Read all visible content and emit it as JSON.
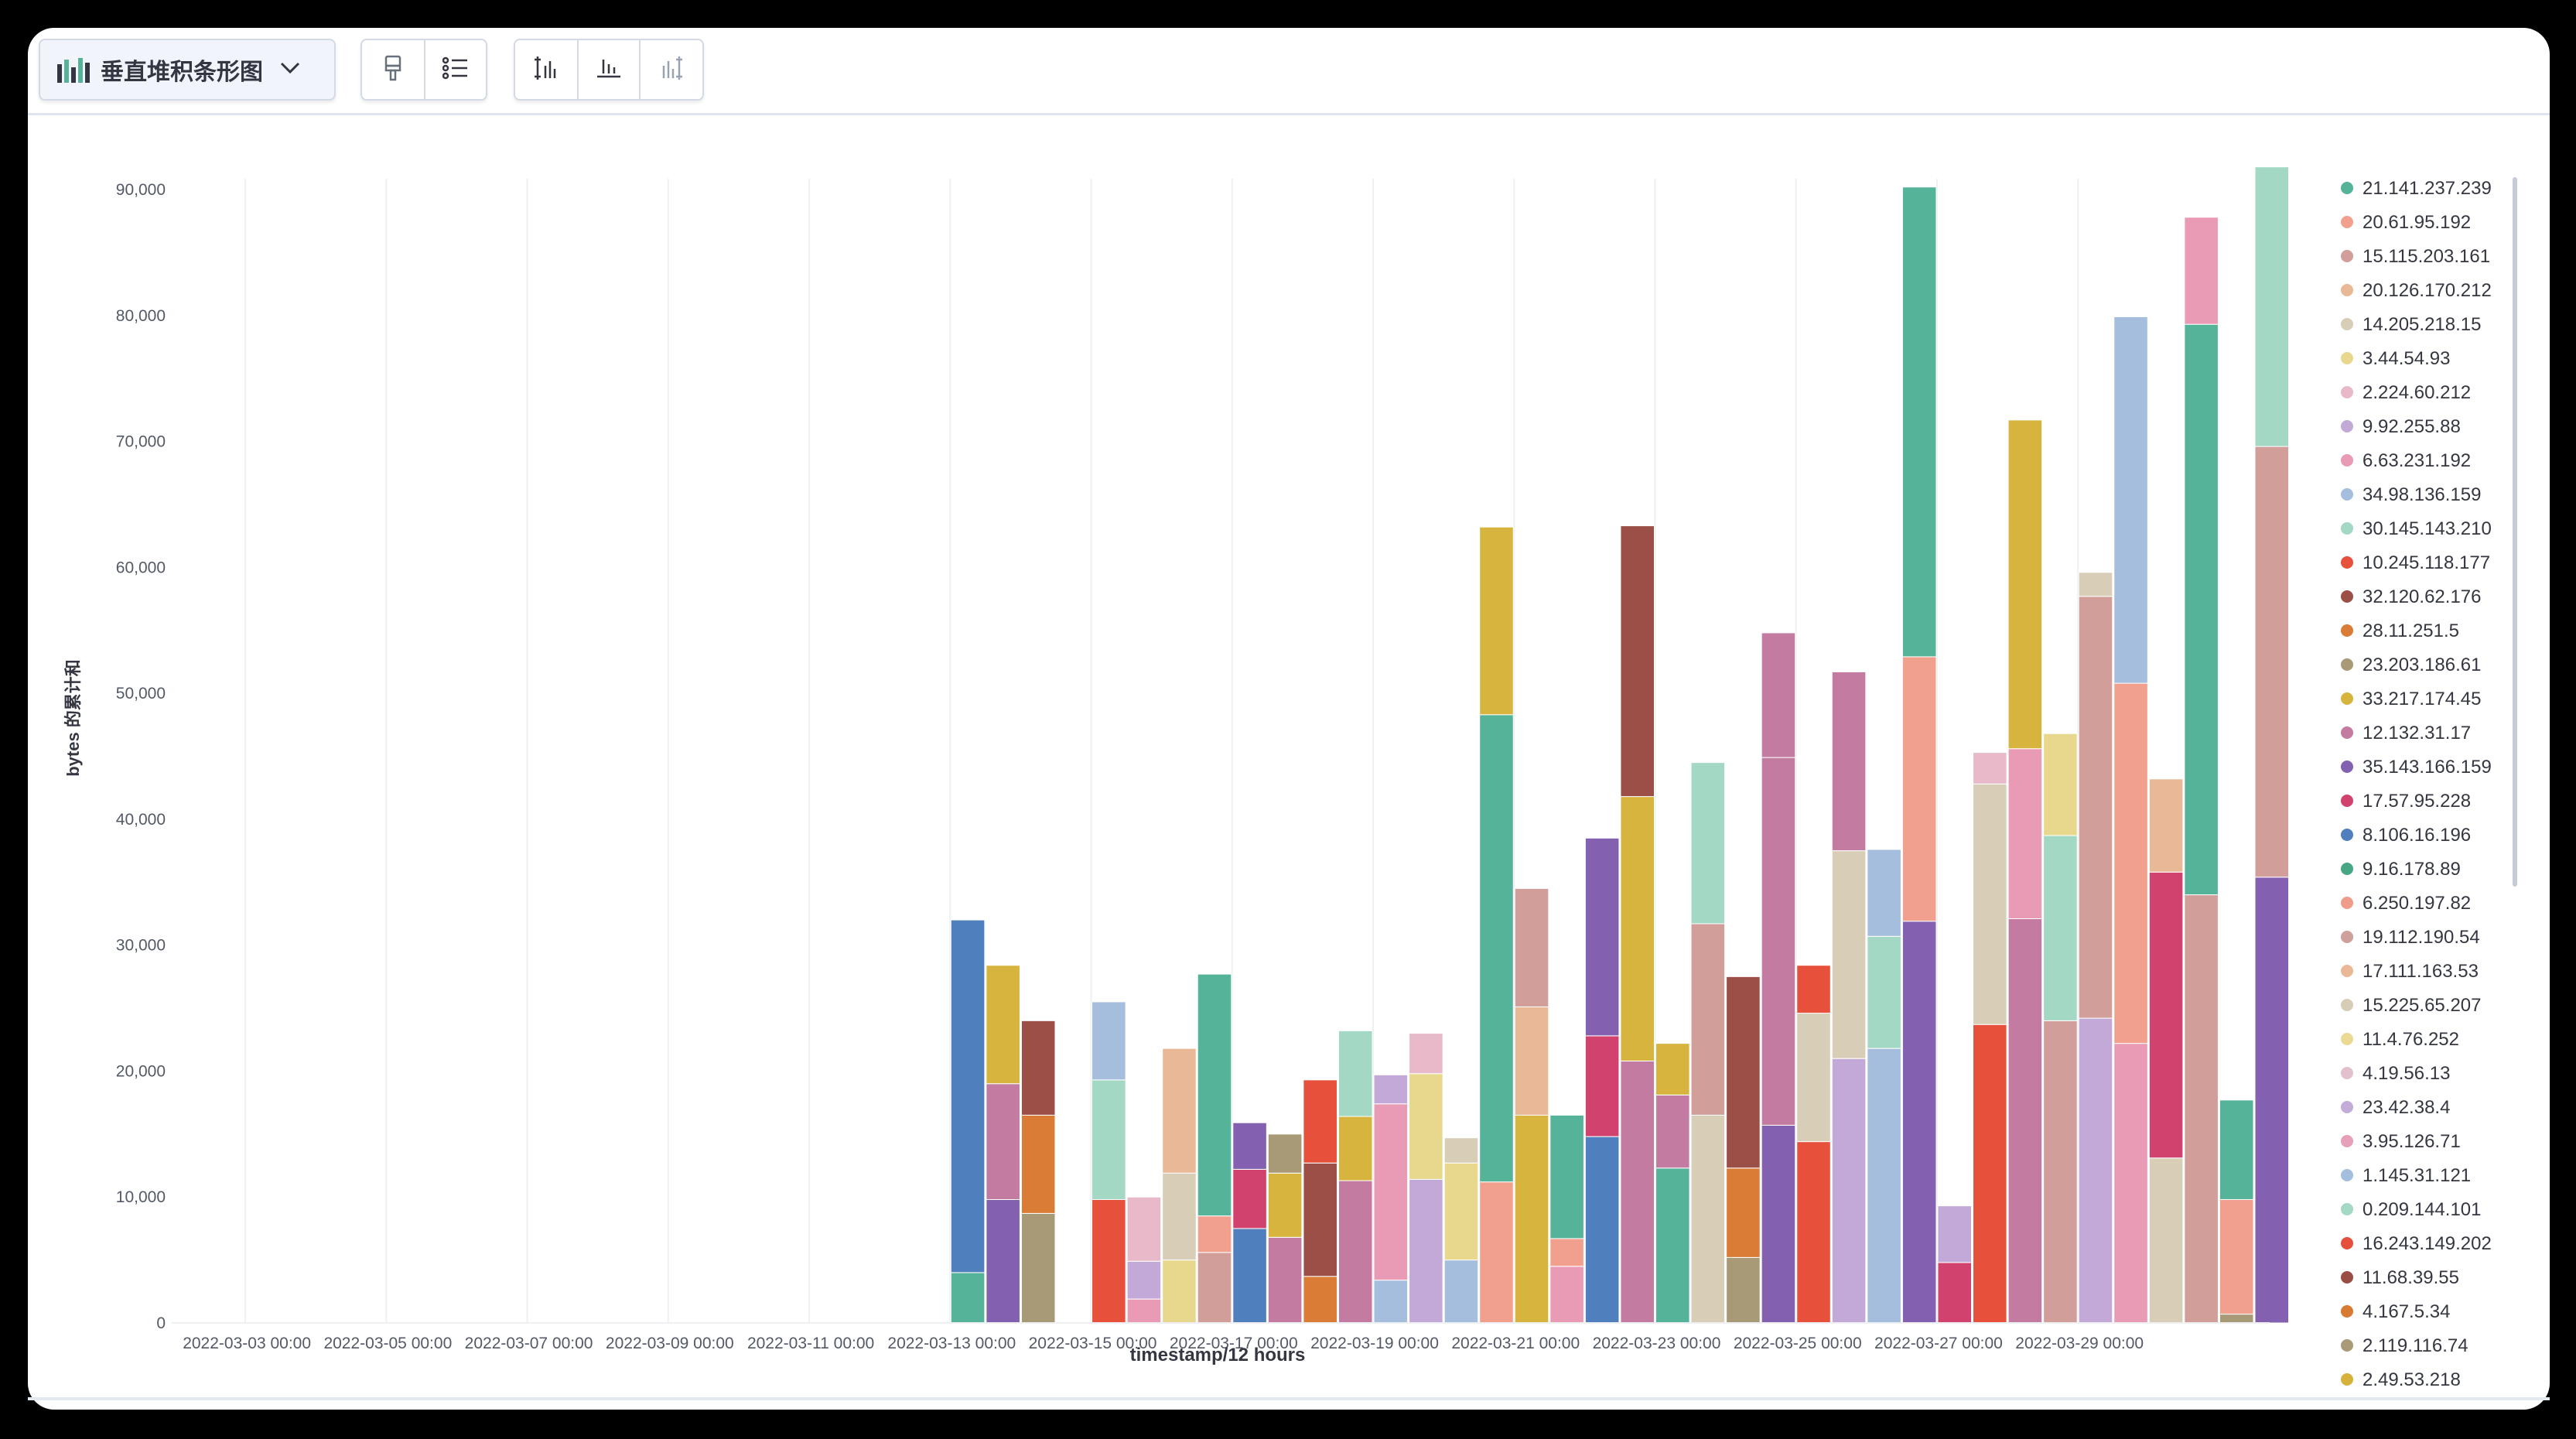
{
  "toolbar": {
    "chart_type_label": "垂直堆积条形图",
    "chart_type_icon": "bar-chart-icon",
    "dropdown_icon": "chevron-down-icon",
    "group1_icons": [
      "paintbrush-icon",
      "legend-list-icon"
    ],
    "group2_icons": [
      "axis-left-icon",
      "axis-bottom-icon",
      "axis-right-icon"
    ]
  },
  "chart_data": {
    "type": "bar",
    "stacked": true,
    "xlabel": "timestamp/12 hours",
    "ylabel": "bytes 的累计和",
    "ylim": [
      0,
      90000
    ],
    "yticks": [
      0,
      10000,
      20000,
      30000,
      40000,
      50000,
      60000,
      70000,
      80000,
      90000
    ],
    "ytick_labels": [
      "0",
      "10,000",
      "20,000",
      "30,000",
      "40,000",
      "50,000",
      "60,000",
      "70,000",
      "80,000",
      "90,000"
    ],
    "xlim": [
      "2022-03-02 00:00",
      "2022-03-31 12:00"
    ],
    "xtick_labels": [
      "2022-03-03 00:00",
      "2022-03-05 00:00",
      "2022-03-07 00:00",
      "2022-03-09 00:00",
      "2022-03-11 00:00",
      "2022-03-13 00:00",
      "2022-03-15 00:00",
      "2022-03-17 00:00",
      "2022-03-19 00:00",
      "2022-03-21 00:00",
      "2022-03-23 00:00",
      "2022-03-25 00:00",
      "2022-03-27 00:00",
      "2022-03-29 00:00"
    ],
    "grid": true,
    "legend_position": "right",
    "legend": [
      {
        "label": "21.141.237.239",
        "color": "#54b399"
      },
      {
        "label": "20.61.95.192",
        "color": "#f1a08e"
      },
      {
        "label": "15.115.203.161",
        "color": "#d19e9a"
      },
      {
        "label": "20.126.170.212",
        "color": "#e9b896"
      },
      {
        "label": "14.205.218.15",
        "color": "#d8cdb6"
      },
      {
        "label": "3.44.54.93",
        "color": "#e8d88e"
      },
      {
        "label": "2.224.60.212",
        "color": "#e8bac9"
      },
      {
        "label": "9.92.255.88",
        "color": "#c2a9d8"
      },
      {
        "label": "6.63.231.192",
        "color": "#e99bb6"
      },
      {
        "label": "34.98.136.159",
        "color": "#a5bedd"
      },
      {
        "label": "30.145.143.210",
        "color": "#a2d8c4"
      },
      {
        "label": "10.245.118.177",
        "color": "#e7503b"
      },
      {
        "label": "32.120.62.176",
        "color": "#9b4f47"
      },
      {
        "label": "28.11.251.5",
        "color": "#da7c35"
      },
      {
        "label": "23.203.186.61",
        "color": "#a89a76"
      },
      {
        "label": "33.217.174.45",
        "color": "#d7b43e"
      },
      {
        "label": "12.132.31.17",
        "color": "#c37ba1"
      },
      {
        "label": "35.143.166.159",
        "color": "#8460b0"
      },
      {
        "label": "17.57.95.228",
        "color": "#d1426e"
      },
      {
        "label": "8.106.16.196",
        "color": "#4f7fbc"
      },
      {
        "label": "9.16.178.89",
        "color": "#47a683"
      },
      {
        "label": "6.250.197.82",
        "color": "#f09c8b"
      },
      {
        "label": "19.112.190.54",
        "color": "#cf9f99"
      },
      {
        "label": "17.111.163.53",
        "color": "#eab896"
      },
      {
        "label": "15.225.65.207",
        "color": "#d7ccb5"
      },
      {
        "label": "11.4.76.252",
        "color": "#ebda92"
      },
      {
        "label": "4.19.56.13",
        "color": "#e3c0cd"
      },
      {
        "label": "23.42.38.4",
        "color": "#c3acd9"
      },
      {
        "label": "3.95.126.71",
        "color": "#e7a0b9"
      },
      {
        "label": "1.145.31.121",
        "color": "#a4bfdd"
      },
      {
        "label": "0.209.144.101",
        "color": "#a4d9c5"
      },
      {
        "label": "16.243.149.202",
        "color": "#e4503d"
      },
      {
        "label": "11.68.39.55",
        "color": "#9a4d45"
      },
      {
        "label": "4.167.5.34",
        "color": "#d97a33"
      },
      {
        "label": "2.119.116.74",
        "color": "#a99b78"
      },
      {
        "label": "2.49.53.218",
        "color": "#d6b23d"
      }
    ],
    "bars": [
      {
        "x": "2022-03-13 00:00",
        "segments": [
          {
            "color": "#54b399",
            "value": 4000
          },
          {
            "color": "#4f7fbc",
            "value": 28000
          }
        ]
      },
      {
        "x": "2022-03-13 12:00",
        "segments": [
          {
            "color": "#8460b0",
            "value": 9800
          },
          {
            "color": "#c37ba1",
            "value": 9200
          },
          {
            "color": "#d7b43e",
            "value": 9400
          }
        ]
      },
      {
        "x": "2022-03-14 00:00",
        "segments": [
          {
            "color": "#a89a76",
            "value": 8700
          },
          {
            "color": "#da7c35",
            "value": 7800
          },
          {
            "color": "#9b4f47",
            "value": 7500
          }
        ]
      },
      {
        "x": "2022-03-15 00:00",
        "segments": [
          {
            "color": "#e7503b",
            "value": 9800
          },
          {
            "color": "#a2d8c4",
            "value": 9500
          },
          {
            "color": "#a5bedd",
            "value": 6200
          }
        ]
      },
      {
        "x": "2022-03-15 12:00",
        "segments": [
          {
            "color": "#e99bb6",
            "value": 1900
          },
          {
            "color": "#c2a9d8",
            "value": 3000
          },
          {
            "color": "#e8bac9",
            "value": 5100
          }
        ]
      },
      {
        "x": "2022-03-16 00:00",
        "segments": [
          {
            "color": "#e8d88e",
            "value": 5000
          },
          {
            "color": "#d8cdb6",
            "value": 6900
          },
          {
            "color": "#e9b896",
            "value": 9900
          }
        ]
      },
      {
        "x": "2022-03-16 12:00",
        "segments": [
          {
            "color": "#d19e9a",
            "value": 5600
          },
          {
            "color": "#f1a08e",
            "value": 2900
          },
          {
            "color": "#54b399",
            "value": 19200
          }
        ]
      },
      {
        "x": "2022-03-17 00:00",
        "segments": [
          {
            "color": "#4f7fbc",
            "value": 7500
          },
          {
            "color": "#d1426e",
            "value": 4700
          },
          {
            "color": "#8460b0",
            "value": 3700
          }
        ]
      },
      {
        "x": "2022-03-17 12:00",
        "segments": [
          {
            "color": "#c37ba1",
            "value": 6800
          },
          {
            "color": "#d7b43e",
            "value": 5100
          },
          {
            "color": "#a89a76",
            "value": 3100
          }
        ]
      },
      {
        "x": "2022-03-18 00:00",
        "segments": [
          {
            "color": "#da7c35",
            "value": 3700
          },
          {
            "color": "#9b4f47",
            "value": 9000
          },
          {
            "color": "#e7503b",
            "value": 6600
          }
        ]
      },
      {
        "x": "2022-03-18 12:00",
        "segments": [
          {
            "color": "#c37ba1",
            "value": 11300
          },
          {
            "color": "#d7b43e",
            "value": 5100
          },
          {
            "color": "#a2d8c4",
            "value": 6800
          }
        ]
      },
      {
        "x": "2022-03-19 00:00",
        "segments": [
          {
            "color": "#a5bedd",
            "value": 3400
          },
          {
            "color": "#e99bb6",
            "value": 14000
          },
          {
            "color": "#c2a9d8",
            "value": 2300
          }
        ]
      },
      {
        "x": "2022-03-19 12:00",
        "segments": [
          {
            "color": "#c2a9d8",
            "value": 11400
          },
          {
            "color": "#e8d88e",
            "value": 8400
          },
          {
            "color": "#e8bac9",
            "value": 3200
          }
        ]
      },
      {
        "x": "2022-03-20 00:00",
        "segments": [
          {
            "color": "#a5bedd",
            "value": 5000
          },
          {
            "color": "#e8d88e",
            "value": 7700
          },
          {
            "color": "#d8cdb6",
            "value": 2000
          }
        ]
      },
      {
        "x": "2022-03-20 12:00",
        "segments": [
          {
            "color": "#f1a08e",
            "value": 11200
          },
          {
            "color": "#54b399",
            "value": 37100
          },
          {
            "color": "#d7b43e",
            "value": 14900
          }
        ]
      },
      {
        "x": "2022-03-21 00:00",
        "segments": [
          {
            "color": "#d7b43e",
            "value": 16500
          },
          {
            "color": "#e9b896",
            "value": 8600
          },
          {
            "color": "#d19e9a",
            "value": 9400
          }
        ]
      },
      {
        "x": "2022-03-21 12:00",
        "segments": [
          {
            "color": "#e99bb6",
            "value": 4500
          },
          {
            "color": "#f1a08e",
            "value": 2200
          },
          {
            "color": "#54b399",
            "value": 9800
          }
        ]
      },
      {
        "x": "2022-03-22 00:00",
        "segments": [
          {
            "color": "#4f7fbc",
            "value": 14800
          },
          {
            "color": "#d1426e",
            "value": 8000
          },
          {
            "color": "#8460b0",
            "value": 15700
          }
        ]
      },
      {
        "x": "2022-03-22 12:00",
        "segments": [
          {
            "color": "#c37ba1",
            "value": 20800
          },
          {
            "color": "#d7b43e",
            "value": 21000
          },
          {
            "color": "#9b4f47",
            "value": 21500
          }
        ]
      },
      {
        "x": "2022-03-23 00:00",
        "segments": [
          {
            "color": "#54b399",
            "value": 12300
          },
          {
            "color": "#c37ba1",
            "value": 5800
          },
          {
            "color": "#d7b43e",
            "value": 4100
          }
        ]
      },
      {
        "x": "2022-03-23 12:00",
        "segments": [
          {
            "color": "#d8cdb6",
            "value": 16500
          },
          {
            "color": "#d19e9a",
            "value": 15200
          },
          {
            "color": "#a2d8c4",
            "value": 12800
          }
        ]
      },
      {
        "x": "2022-03-24 00:00",
        "segments": [
          {
            "color": "#a89a76",
            "value": 5200
          },
          {
            "color": "#da7c35",
            "value": 7100
          },
          {
            "color": "#9b4f47",
            "value": 15200
          }
        ]
      },
      {
        "x": "2022-03-24 12:00",
        "segments": [
          {
            "color": "#8460b0",
            "value": 15700
          },
          {
            "color": "#c37ba1",
            "value": 29200
          },
          {
            "color": "#c37ba1",
            "value": 9900
          }
        ]
      },
      {
        "x": "2022-03-25 00:00",
        "segments": [
          {
            "color": "#e7503b",
            "value": 14400
          },
          {
            "color": "#d8cdb6",
            "value": 10200
          },
          {
            "color": "#e7503b",
            "value": 3800
          }
        ]
      },
      {
        "x": "2022-03-25 12:00",
        "segments": [
          {
            "color": "#c2a9d8",
            "value": 21000
          },
          {
            "color": "#d8cdb6",
            "value": 16500
          },
          {
            "color": "#c37ba1",
            "value": 14200
          }
        ]
      },
      {
        "x": "2022-03-26 00:00",
        "segments": [
          {
            "color": "#a5bedd",
            "value": 21800
          },
          {
            "color": "#a2d8c4",
            "value": 8900
          },
          {
            "color": "#a5bedd",
            "value": 6900
          }
        ]
      },
      {
        "x": "2022-03-26 12:00",
        "segments": [
          {
            "color": "#8460b0",
            "value": 31900
          },
          {
            "color": "#f1a08e",
            "value": 21000
          },
          {
            "color": "#54b399",
            "value": 37300
          }
        ]
      },
      {
        "x": "2022-03-27 00:00",
        "segments": [
          {
            "color": "#d1426e",
            "value": 4800
          },
          {
            "color": "#c2a9d8",
            "value": 4500
          }
        ]
      },
      {
        "x": "2022-03-27 12:00",
        "segments": [
          {
            "color": "#e7503b",
            "value": 23700
          },
          {
            "color": "#d8cdb6",
            "value": 19100
          },
          {
            "color": "#e8bac9",
            "value": 2500
          }
        ]
      },
      {
        "x": "2022-03-28 00:00",
        "segments": [
          {
            "color": "#c37ba1",
            "value": 32100
          },
          {
            "color": "#e99bb6",
            "value": 13500
          },
          {
            "color": "#d7b43e",
            "value": 26100
          }
        ]
      },
      {
        "x": "2022-03-28 12:00",
        "segments": [
          {
            "color": "#d19e9a",
            "value": 24000
          },
          {
            "color": "#a2d8c4",
            "value": 14700
          },
          {
            "color": "#e8d88e",
            "value": 8100
          }
        ]
      },
      {
        "x": "2022-03-29 00:00",
        "segments": [
          {
            "color": "#c2a9d8",
            "value": 24200
          },
          {
            "color": "#d19e9a",
            "value": 33500
          },
          {
            "color": "#d8cdb6",
            "value": 1900
          }
        ]
      },
      {
        "x": "2022-03-29 12:00",
        "segments": [
          {
            "color": "#e99bb6",
            "value": 22200
          },
          {
            "color": "#f1a08e",
            "value": 28600
          },
          {
            "color": "#a5bedd",
            "value": 29100
          }
        ]
      },
      {
        "x": "2022-03-30 00:00",
        "segments": [
          {
            "color": "#d8cdb6",
            "value": 13100
          },
          {
            "color": "#d1426e",
            "value": 22700
          },
          {
            "color": "#e9b896",
            "value": 7400
          }
        ]
      },
      {
        "x": "2022-03-30 12:00",
        "segments": [
          {
            "color": "#d19e9a",
            "value": 34000
          },
          {
            "color": "#54b399",
            "value": 45300
          },
          {
            "color": "#e99bb6",
            "value": 8500
          }
        ]
      },
      {
        "x": "2022-03-31 00:00",
        "segments": [
          {
            "color": "#a89a76",
            "value": 700
          },
          {
            "color": "#f1a08e",
            "value": 9100
          },
          {
            "color": "#54b399",
            "value": 7900
          }
        ]
      },
      {
        "x": "2022-03-31 12:00",
        "segments": [
          {
            "color": "#8460b0",
            "value": 35400
          },
          {
            "color": "#d19e9a",
            "value": 34200
          },
          {
            "color": "#a2d8c4",
            "value": 22200
          }
        ]
      }
    ]
  }
}
